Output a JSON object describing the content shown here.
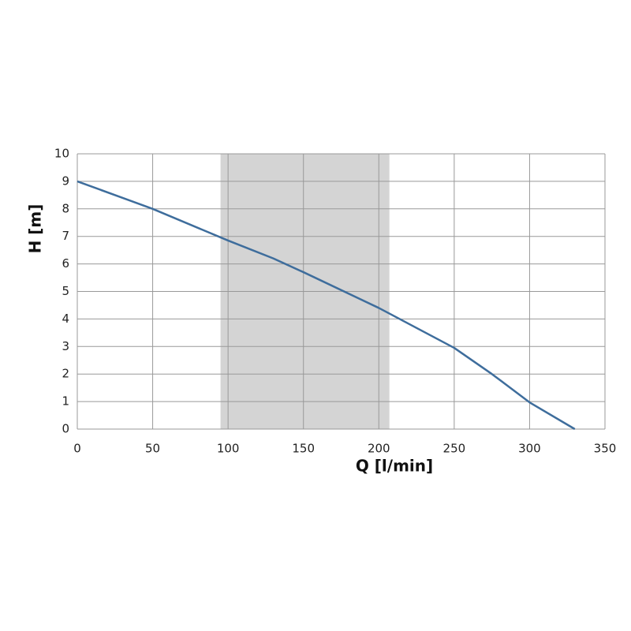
{
  "chart_data": {
    "type": "line",
    "x_label": "Q [l/min]",
    "y_label": "H [m]",
    "x": [
      0,
      50,
      100,
      130,
      150,
      200,
      250,
      275,
      300,
      330
    ],
    "series": [
      {
        "name": "H",
        "color": "#3e6d9c",
        "values": [
          9,
          8,
          6.85,
          6.2,
          5.7,
          4.4,
          2.95,
          2,
          0.97,
          0
        ]
      }
    ],
    "xlim": [
      0,
      350
    ],
    "ylim": [
      0,
      10
    ],
    "xticks": [
      0,
      50,
      100,
      150,
      200,
      250,
      300,
      350
    ],
    "yticks": [
      0,
      1,
      2,
      3,
      4,
      5,
      6,
      7,
      8,
      9,
      10
    ],
    "grid": true,
    "highlight_range": [
      95,
      207
    ],
    "highlight_color": "#d4d4d4"
  }
}
